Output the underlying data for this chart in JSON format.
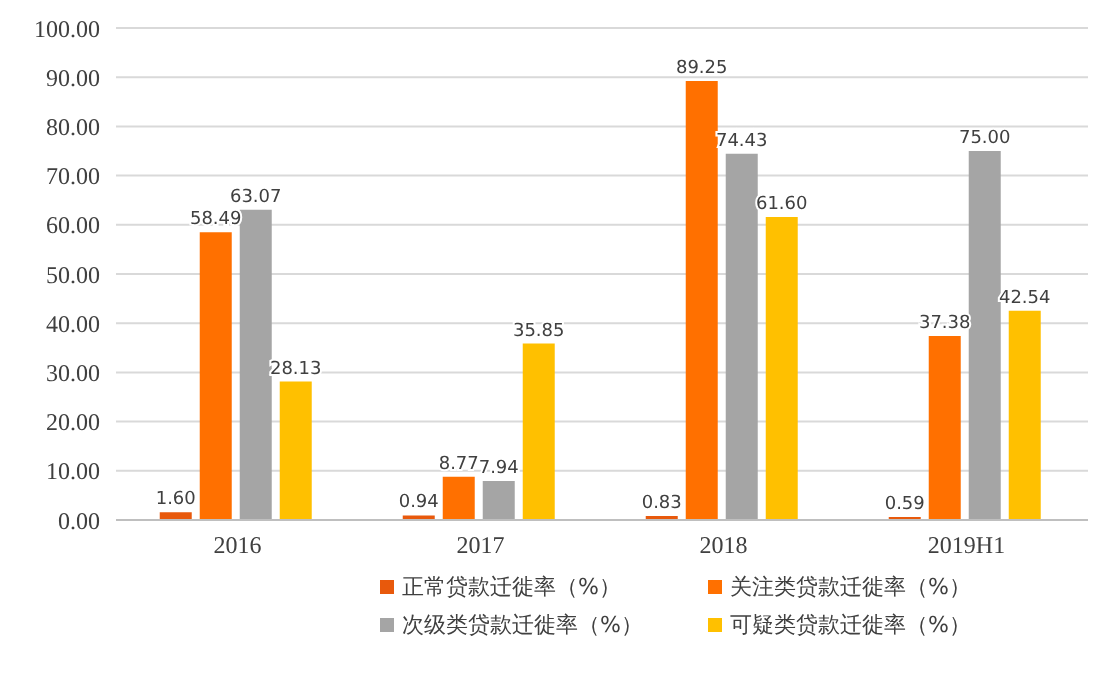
{
  "chart_data": {
    "type": "bar",
    "categories": [
      "2016",
      "2017",
      "2018",
      "2019H1"
    ],
    "series": [
      {
        "name": "正常贷款迁徙率（%）",
        "color": "#e8590c",
        "values": [
          1.6,
          0.94,
          0.83,
          0.59
        ],
        "value_labels": [
          "1.60",
          "0.94",
          "0.83",
          "0.59"
        ]
      },
      {
        "name": "关注类贷款迁徙率（%）",
        "color": "#ff7000",
        "values": [
          58.49,
          8.77,
          89.25,
          37.38
        ],
        "value_labels": [
          "58.49",
          "8.77",
          "89.25",
          "37.38"
        ]
      },
      {
        "name": "次级类贷款迁徙率（%）",
        "color": "#a5a5a5",
        "values": [
          63.07,
          7.94,
          74.43,
          75.0
        ],
        "value_labels": [
          "63.07",
          "7.94",
          "74.43",
          "75.00"
        ]
      },
      {
        "name": "可疑类贷款迁徙率（%）",
        "color": "#ffc000",
        "values": [
          28.13,
          35.85,
          61.6,
          42.54
        ],
        "value_labels": [
          "28.13",
          "35.85",
          "61.60",
          "42.54"
        ]
      }
    ],
    "ylim": [
      0,
      100
    ],
    "yticks": [
      {
        "value": 0,
        "label": "0.00"
      },
      {
        "value": 10,
        "label": "10.00"
      },
      {
        "value": 20,
        "label": "20.00"
      },
      {
        "value": 30,
        "label": "30.00"
      },
      {
        "value": 40,
        "label": "40.00"
      },
      {
        "value": 50,
        "label": "50.00"
      },
      {
        "value": 60,
        "label": "60.00"
      },
      {
        "value": 70,
        "label": "70.00"
      },
      {
        "value": 80,
        "label": "80.00"
      },
      {
        "value": 90,
        "label": "90.00"
      },
      {
        "value": 100,
        "label": "100.00"
      }
    ],
    "grid": "y",
    "legend": "bottom"
  }
}
